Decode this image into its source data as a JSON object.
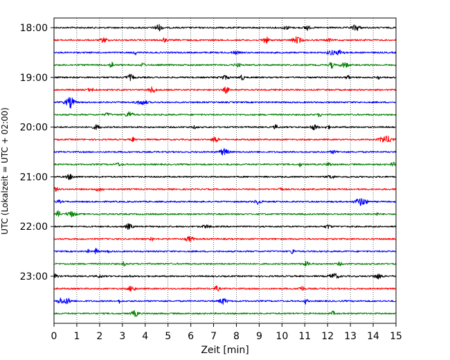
{
  "chart_data": {
    "type": "line",
    "title": "",
    "xlabel": "Zeit  [min]",
    "ylabel": "UTC (Lokalzeit = UTC + 02:00)",
    "xlim": [
      0,
      15
    ],
    "x_ticks": [
      0,
      1,
      2,
      3,
      4,
      5,
      6,
      7,
      8,
      9,
      10,
      11,
      12,
      13,
      14,
      15
    ],
    "y_tick_labels": [
      "18:00",
      "19:00",
      "20:00",
      "21:00",
      "22:00",
      "23:00"
    ],
    "grid": "vertical dotted",
    "colors": [
      "#000000",
      "#ff0000",
      "#0000ff",
      "#008000"
    ],
    "traces": [
      {
        "start": "18:00",
        "color": "#000000"
      },
      {
        "start": "18:15",
        "color": "#ff0000"
      },
      {
        "start": "18:30",
        "color": "#0000ff"
      },
      {
        "start": "18:45",
        "color": "#008000"
      },
      {
        "start": "19:00",
        "color": "#000000"
      },
      {
        "start": "19:15",
        "color": "#ff0000"
      },
      {
        "start": "19:30",
        "color": "#0000ff"
      },
      {
        "start": "19:45",
        "color": "#008000"
      },
      {
        "start": "20:00",
        "color": "#000000"
      },
      {
        "start": "20:15",
        "color": "#ff0000"
      },
      {
        "start": "20:30",
        "color": "#0000ff"
      },
      {
        "start": "20:45",
        "color": "#008000"
      },
      {
        "start": "21:00",
        "color": "#000000"
      },
      {
        "start": "21:15",
        "color": "#ff0000"
      },
      {
        "start": "21:30",
        "color": "#0000ff"
      },
      {
        "start": "21:45",
        "color": "#008000"
      },
      {
        "start": "22:00",
        "color": "#000000"
      },
      {
        "start": "22:15",
        "color": "#ff0000"
      },
      {
        "start": "22:30",
        "color": "#0000ff"
      },
      {
        "start": "22:45",
        "color": "#008000"
      },
      {
        "start": "23:00",
        "color": "#000000"
      },
      {
        "start": "23:15",
        "color": "#ff0000"
      },
      {
        "start": "23:30",
        "color": "#0000ff"
      },
      {
        "start": "23:45",
        "color": "#008000"
      }
    ]
  }
}
